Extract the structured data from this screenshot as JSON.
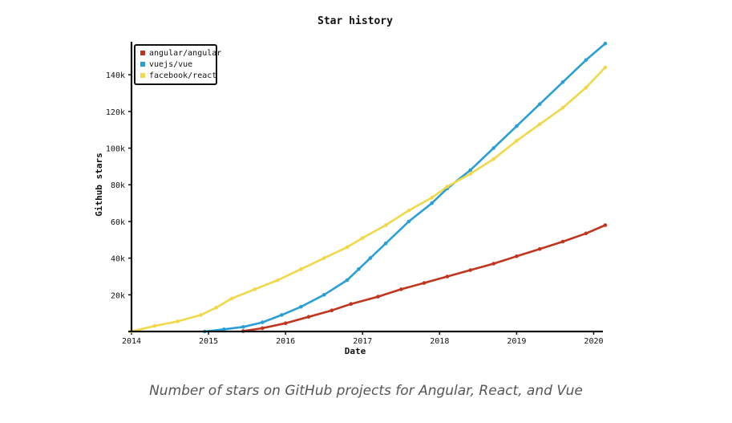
{
  "caption": "Number of stars on GitHub projects for Angular, React, and Vue",
  "chart_data": {
    "type": "line",
    "title": "Star history",
    "xlabel": "Date",
    "ylabel": "Github stars",
    "xlim": [
      2014.0,
      2020.12
    ],
    "ylim": [
      0,
      158000
    ],
    "x_ticks": [
      "2014",
      "2015",
      "2016",
      "2017",
      "2018",
      "2019",
      "2020"
    ],
    "y_ticks": [
      "20k",
      "40k",
      "60k",
      "80k",
      "100k",
      "120k",
      "140k"
    ],
    "y_tick_values": [
      20000,
      40000,
      60000,
      80000,
      100000,
      120000,
      140000
    ],
    "grid": false,
    "legend": "top-left",
    "series": [
      {
        "name": "angular/angular",
        "color": "#c1341e",
        "x": [
          2015.45,
          2015.7,
          2016.0,
          2016.3,
          2016.6,
          2016.85,
          2017.2,
          2017.5,
          2017.8,
          2018.1,
          2018.4,
          2018.7,
          2019.0,
          2019.3,
          2019.6,
          2019.9,
          2020.15
        ],
        "y": [
          200,
          1800,
          4500,
          8000,
          11500,
          15000,
          19000,
          23000,
          26500,
          30000,
          33500,
          37000,
          41000,
          45000,
          49000,
          53500,
          58000
        ]
      },
      {
        "name": "vuejs/vue",
        "color": "#2a9fd6",
        "x": [
          2014.95,
          2015.2,
          2015.45,
          2015.7,
          2015.95,
          2016.2,
          2016.5,
          2016.8,
          2016.95,
          2017.1,
          2017.3,
          2017.6,
          2017.9,
          2018.1,
          2018.4,
          2018.7,
          2019.0,
          2019.3,
          2019.6,
          2019.9,
          2020.15
        ],
        "y": [
          0,
          1200,
          2500,
          5000,
          9000,
          13500,
          20000,
          28000,
          34000,
          40000,
          48000,
          60000,
          70000,
          78000,
          88000,
          100000,
          112000,
          124000,
          136000,
          148000,
          157000
        ]
      },
      {
        "name": "facebook/react",
        "color": "#f0d848",
        "x": [
          2014.0,
          2014.3,
          2014.6,
          2014.9,
          2015.1,
          2015.3,
          2015.6,
          2015.9,
          2016.2,
          2016.5,
          2016.8,
          2017.0,
          2017.3,
          2017.6,
          2017.9,
          2018.1,
          2018.4,
          2018.7,
          2019.0,
          2019.3,
          2019.6,
          2019.9,
          2020.15
        ],
        "y": [
          0,
          3000,
          5500,
          9000,
          13000,
          18000,
          23000,
          28000,
          34000,
          40000,
          46000,
          51000,
          58000,
          66000,
          73000,
          79000,
          86000,
          94000,
          104000,
          113000,
          122000,
          133000,
          144000
        ]
      }
    ]
  }
}
